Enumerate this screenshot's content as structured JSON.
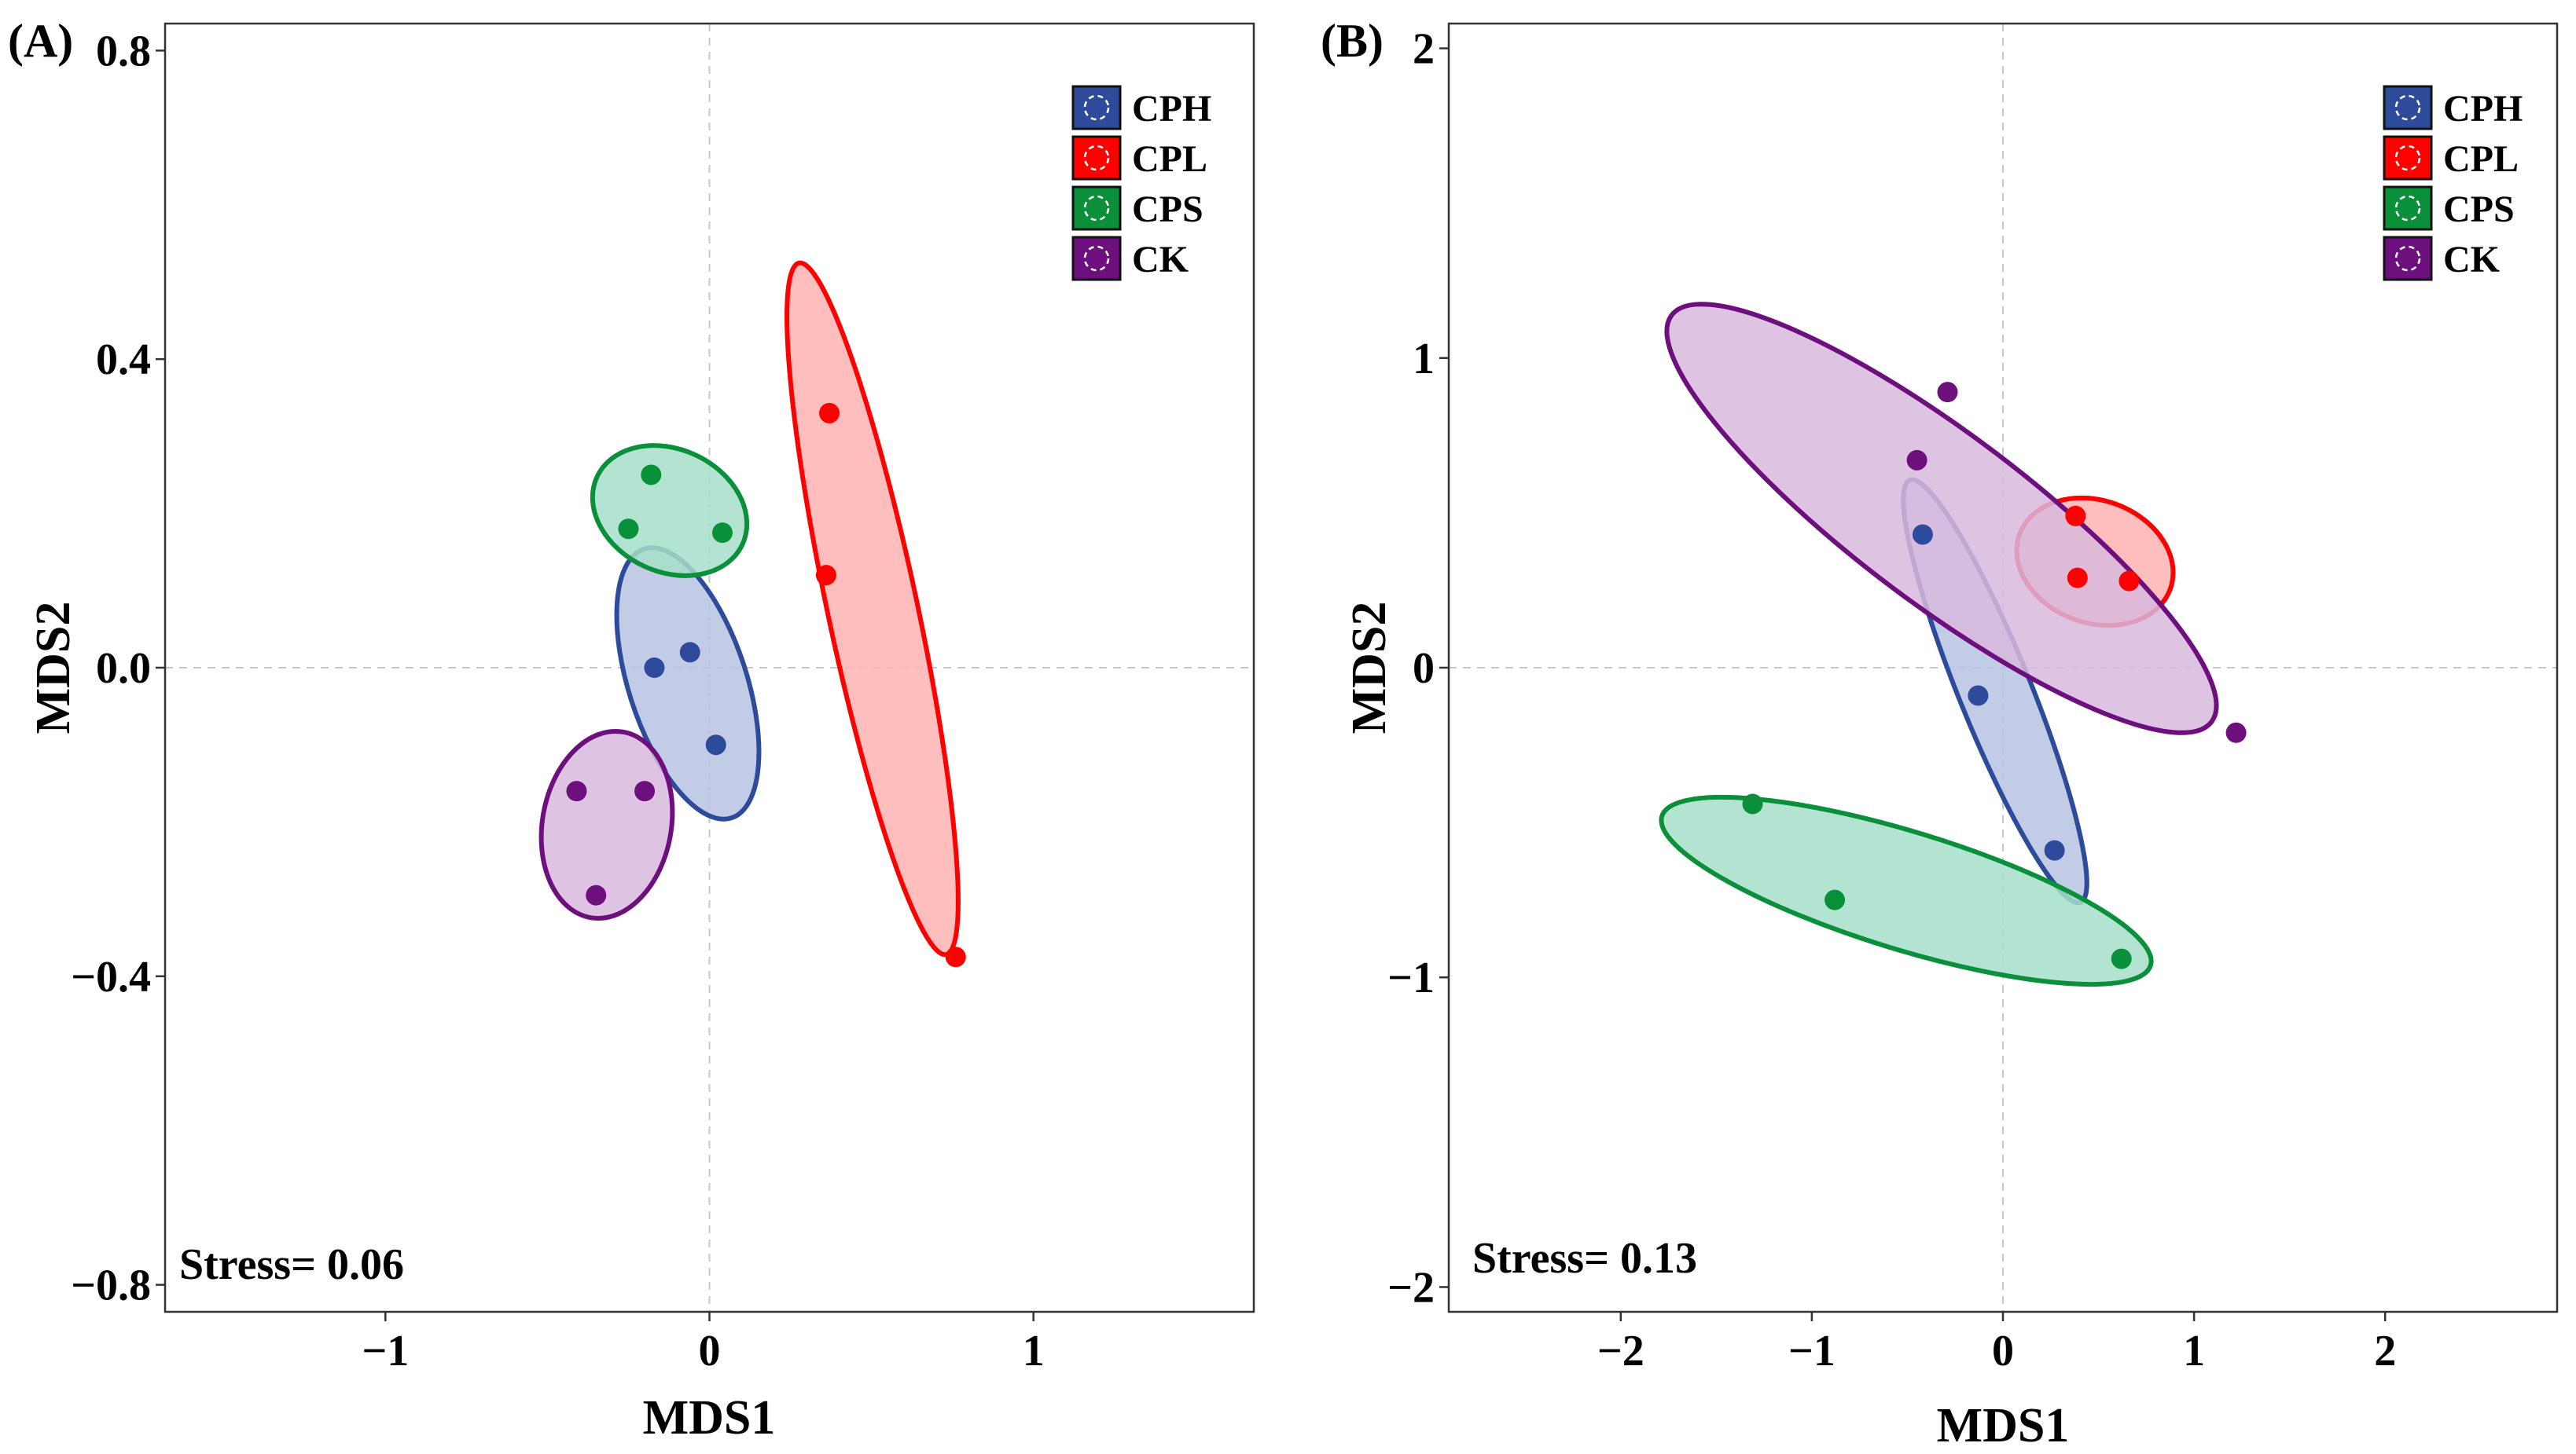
{
  "chart_data": [
    {
      "type": "scatter",
      "panel": "(A)",
      "xlabel": "MDS1",
      "ylabel": "MDS2",
      "xlim": [
        -1.68,
        1.68
      ],
      "ylim": [
        -0.835,
        0.835
      ],
      "xticks": [
        -1,
        0,
        1
      ],
      "xtick_labels": [
        "−1",
        "0",
        "1"
      ],
      "yticks": [
        0.8,
        0.4,
        0.0,
        -0.4,
        -0.8
      ],
      "ytick_labels": [
        "0.8",
        "0.4",
        "0.0",
        "−0.4",
        "−0.8"
      ],
      "zero_lines": true,
      "annotation": "Stress= 0.06",
      "legend_position": "top-right",
      "series": [
        {
          "name": "CPH",
          "color": "#2E4A9B",
          "fill": "#B8C3E3",
          "points": [
            [
              -0.06,
              0.02
            ],
            [
              -0.17,
              0.0
            ],
            [
              0.02,
              -0.1
            ]
          ]
        },
        {
          "name": "CPL",
          "color": "#FF0000",
          "fill": "#FFB3B3",
          "points": [
            [
              0.37,
              0.33
            ],
            [
              0.36,
              0.12
            ],
            [
              0.76,
              -0.375
            ]
          ]
        },
        {
          "name": "CPS",
          "color": "#0A8F3A",
          "fill": "#A6DFC9",
          "points": [
            [
              -0.18,
              0.25
            ],
            [
              -0.25,
              0.18
            ],
            [
              0.04,
              0.175
            ]
          ]
        },
        {
          "name": "CK",
          "color": "#6E0F7E",
          "fill": "#D9B8DD",
          "points": [
            [
              -0.41,
              -0.16
            ],
            [
              -0.2,
              -0.16
            ],
            [
              -0.35,
              -0.295
            ]
          ]
        }
      ]
    },
    {
      "type": "scatter",
      "panel": "(B)",
      "xlabel": "MDS1",
      "ylabel": "MDS2",
      "xlim": [
        -2.9,
        2.9
      ],
      "ylim": [
        -2.08,
        2.08
      ],
      "xticks": [
        -2,
        -1,
        0,
        1,
        2
      ],
      "xtick_labels": [
        "−2",
        "−1",
        "0",
        "1",
        "2"
      ],
      "yticks": [
        2,
        1,
        0,
        -1,
        -2
      ],
      "ytick_labels": [
        "2",
        "1",
        "0",
        "−1",
        "−2"
      ],
      "zero_lines": true,
      "annotation": "Stress= 0.13",
      "legend_position": "top-right",
      "series": [
        {
          "name": "CPH",
          "color": "#2E4A9B",
          "fill": "#B8C3E3",
          "points": [
            [
              -0.42,
              0.43
            ],
            [
              -0.13,
              -0.09
            ],
            [
              0.27,
              -0.59
            ]
          ]
        },
        {
          "name": "CPL",
          "color": "#FF0000",
          "fill": "#FFB3B3",
          "points": [
            [
              0.38,
              0.49
            ],
            [
              0.39,
              0.29
            ],
            [
              0.66,
              0.28
            ]
          ]
        },
        {
          "name": "CPS",
          "color": "#0A8F3A",
          "fill": "#A6DFC9",
          "points": [
            [
              -1.31,
              -0.44
            ],
            [
              -0.88,
              -0.75
            ],
            [
              0.62,
              -0.94
            ]
          ]
        },
        {
          "name": "CK",
          "color": "#6E0F7E",
          "fill": "#D9B8DD",
          "points": [
            [
              -0.29,
              0.89
            ],
            [
              -0.45,
              0.67
            ],
            [
              1.22,
              -0.21
            ]
          ]
        }
      ]
    }
  ]
}
